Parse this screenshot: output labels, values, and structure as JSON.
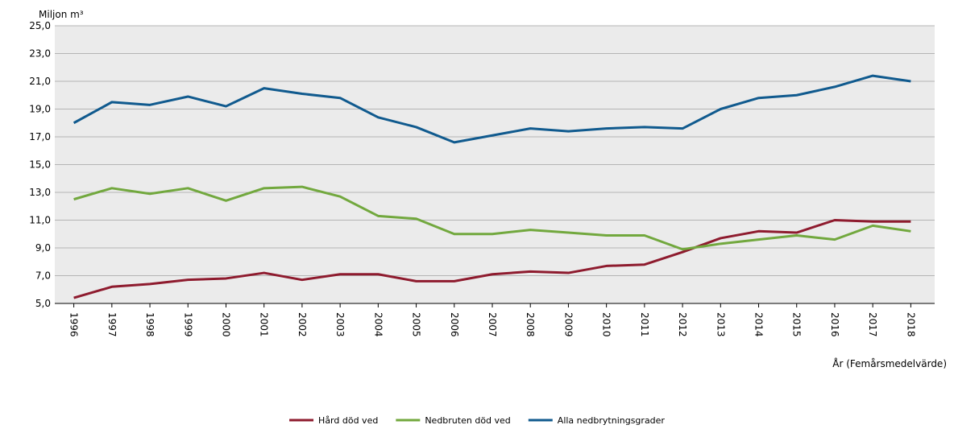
{
  "chart_data": {
    "type": "line",
    "y_axis_label": "Miljon m³",
    "x_axis_label": "År (Femårsmedelvärde)",
    "categories": [
      "1996",
      "1997",
      "1998",
      "1999",
      "2000",
      "2001",
      "2002",
      "2003",
      "2004",
      "2005",
      "2006",
      "2007",
      "2008",
      "2009",
      "2010",
      "2011",
      "2012",
      "2013",
      "2014",
      "2015",
      "2016",
      "2017",
      "2018"
    ],
    "series": [
      {
        "name": "Hård död ved",
        "color": "#8e1b2e",
        "values": [
          5.4,
          6.2,
          6.4,
          6.7,
          6.8,
          7.2,
          6.7,
          7.1,
          7.1,
          6.6,
          6.6,
          7.1,
          7.3,
          7.2,
          7.7,
          7.8,
          8.7,
          9.7,
          10.2,
          10.1,
          11.0,
          10.9,
          10.9
        ]
      },
      {
        "name": "Nedbruten död ved",
        "color": "#72a83e",
        "values": [
          12.5,
          13.3,
          12.9,
          13.3,
          12.4,
          13.3,
          13.4,
          12.7,
          11.3,
          11.1,
          10.0,
          10.0,
          10.3,
          10.1,
          9.9,
          9.9,
          8.9,
          9.3,
          9.6,
          9.9,
          9.6,
          10.6,
          10.2
        ]
      },
      {
        "name": "Alla nedbrytningsgrader",
        "color": "#105a8e",
        "values": [
          18.0,
          19.5,
          19.3,
          19.9,
          19.2,
          20.5,
          20.1,
          19.8,
          18.4,
          17.7,
          16.6,
          17.1,
          17.6,
          17.4,
          17.6,
          17.7,
          17.6,
          19.0,
          19.8,
          20.0,
          20.6,
          21.4,
          21.0
        ]
      }
    ],
    "ylim": [
      5,
      25
    ],
    "yticks": [
      {
        "value": 5,
        "label": "5,0"
      },
      {
        "value": 7,
        "label": "7,0"
      },
      {
        "value": 9,
        "label": "9,0"
      },
      {
        "value": 11,
        "label": "11,0"
      },
      {
        "value": 13,
        "label": "13,0"
      },
      {
        "value": 15,
        "label": "15,0"
      },
      {
        "value": 17,
        "label": "17,0"
      },
      {
        "value": 19,
        "label": "19,0"
      },
      {
        "value": 21,
        "label": "21,0"
      },
      {
        "value": 23,
        "label": "23,0"
      },
      {
        "value": 25,
        "label": "25,0"
      }
    ],
    "grid": true,
    "legend": "bottom"
  }
}
